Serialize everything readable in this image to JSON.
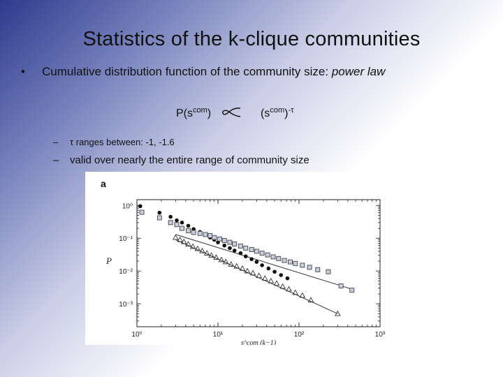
{
  "slide": {
    "title": "Statistics of the k-clique communities",
    "bullet": {
      "marker": "•",
      "text": "Cumulative distribution function of the community size: ",
      "emphasis": "power law"
    },
    "formula": {
      "lhs_base": "P(s",
      "lhs_sup": "com",
      "lhs_close": ")",
      "rhs_base": "(s",
      "rhs_sup": "com",
      "rhs_close": ")",
      "rhs_exp": "-τ"
    },
    "subbullets": [
      {
        "dash": "–",
        "text": "τ ranges between: -1, -1.6"
      },
      {
        "dash": "–",
        "text": "valid over nearly the entire range of community size"
      }
    ]
  },
  "chart_data": {
    "type": "scatter",
    "panel_label": "a",
    "xlabel": "s^com (k−1)",
    "ylabel": "P",
    "xscale": "log",
    "yscale": "log",
    "xlim": [
      1,
      1000
    ],
    "ylim": [
      0.0002,
      1.5
    ],
    "x_ticks": [
      "10⁰",
      "10¹",
      "10²",
      "10³"
    ],
    "y_ticks": [
      "10⁰",
      "10⁻¹",
      "10⁻²",
      "10⁻³"
    ],
    "series": [
      {
        "marker": "filled-circle",
        "points": [
          [
            1.1,
            0.95
          ],
          [
            1.9,
            0.6
          ],
          [
            2.6,
            0.45
          ],
          [
            3.1,
            0.35
          ],
          [
            3.6,
            0.3
          ],
          [
            4.3,
            0.24
          ],
          [
            5,
            0.19
          ],
          [
            6,
            0.155
          ],
          [
            7,
            0.13
          ],
          [
            8,
            0.105
          ],
          [
            9,
            0.09
          ],
          [
            10,
            0.075
          ],
          [
            12,
            0.06
          ],
          [
            14,
            0.05
          ],
          [
            16,
            0.042
          ],
          [
            19,
            0.035
          ],
          [
            22,
            0.028
          ],
          [
            26,
            0.023
          ],
          [
            30,
            0.019
          ],
          [
            35,
            0.015
          ],
          [
            42,
            0.012
          ],
          [
            50,
            0.0095
          ],
          [
            60,
            0.0075
          ],
          [
            72,
            0.006
          ]
        ]
      },
      {
        "marker": "open-square",
        "points": [
          [
            1.15,
            0.62
          ],
          [
            1.9,
            0.42
          ],
          [
            2.6,
            0.3
          ],
          [
            3.1,
            0.26
          ],
          [
            3.6,
            0.2
          ],
          [
            4.3,
            0.17
          ],
          [
            5,
            0.15
          ],
          [
            6,
            0.14
          ],
          [
            7,
            0.13
          ],
          [
            8,
            0.12
          ],
          [
            9,
            0.105
          ],
          [
            10.5,
            0.095
          ],
          [
            12,
            0.085
          ],
          [
            14,
            0.075
          ],
          [
            16,
            0.067
          ],
          [
            19,
            0.058
          ],
          [
            22,
            0.05
          ],
          [
            26,
            0.045
          ],
          [
            30,
            0.04
          ],
          [
            35,
            0.035
          ],
          [
            41,
            0.031
          ],
          [
            48,
            0.027
          ],
          [
            56,
            0.024
          ],
          [
            66,
            0.021
          ],
          [
            78,
            0.019
          ],
          [
            90,
            0.017
          ],
          [
            110,
            0.015
          ],
          [
            135,
            0.013
          ],
          [
            170,
            0.011
          ],
          [
            230,
            0.0095
          ],
          [
            330,
            0.0035
          ],
          [
            450,
            0.0026
          ]
        ]
      },
      {
        "marker": "open-triangle",
        "points": [
          [
            3,
            0.105
          ],
          [
            3.4,
            0.09
          ],
          [
            3.8,
            0.078
          ],
          [
            4.3,
            0.066
          ],
          [
            4.9,
            0.056
          ],
          [
            5.6,
            0.048
          ],
          [
            6.4,
            0.041
          ],
          [
            7.3,
            0.035
          ],
          [
            8.3,
            0.03
          ],
          [
            9.5,
            0.026
          ],
          [
            11,
            0.022
          ],
          [
            12.5,
            0.019
          ],
          [
            14.5,
            0.016
          ],
          [
            17,
            0.014
          ],
          [
            20,
            0.012
          ],
          [
            23,
            0.01
          ],
          [
            27,
            0.0087
          ],
          [
            32,
            0.0072
          ],
          [
            38,
            0.006
          ],
          [
            45,
            0.005
          ],
          [
            53,
            0.0042
          ],
          [
            63,
            0.0034
          ],
          [
            75,
            0.0028
          ],
          [
            90,
            0.0022
          ],
          [
            110,
            0.0018
          ],
          [
            140,
            0.0013
          ],
          [
            300,
            0.0005
          ]
        ]
      }
    ],
    "fit_lines": [
      {
        "from": [
          3,
          0.13
        ],
        "to": [
          450,
          0.0028
        ]
      },
      {
        "from": [
          3,
          0.09
        ],
        "to": [
          300,
          0.0005
        ]
      }
    ]
  }
}
